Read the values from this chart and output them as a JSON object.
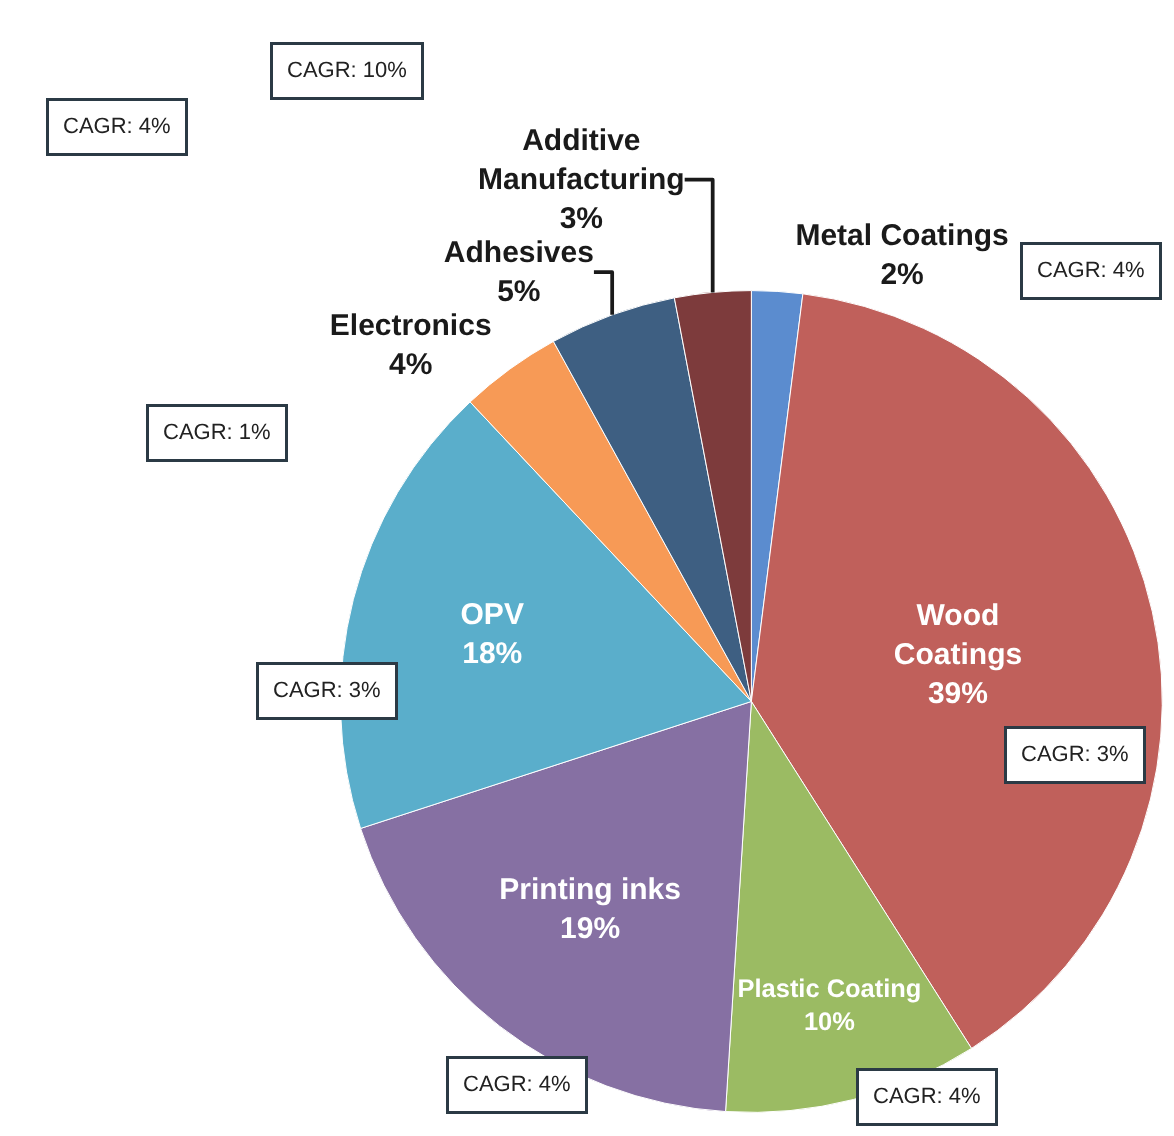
{
  "chart_data": {
    "type": "pie",
    "categories": [
      "Metal Coatings",
      "Wood Coatings",
      "Plastic Coating",
      "Printing inks",
      "OPV",
      "Electronics",
      "Adhesives",
      "Additive Manufacturing"
    ],
    "values": [
      2,
      39,
      10,
      19,
      18,
      4,
      5,
      3
    ],
    "value_labels": [
      "2%",
      "39%",
      "10%",
      "19%",
      "18%",
      "4%",
      "5%",
      "3%"
    ],
    "colors": [
      "#5b8ccf",
      "#c0605b",
      "#9bbb63",
      "#8670a3",
      "#5aaecb",
      "#f79a56",
      "#3e5f82",
      "#7d3b3c"
    ],
    "annotations": [
      "CAGR: 10%",
      "CAGR: 4%",
      "CAGR: 4%",
      "CAGR: 1%",
      "CAGR: 3%",
      "CAGR: 3%",
      "CAGR: 4%",
      "CAGR: 4%"
    ]
  }
}
